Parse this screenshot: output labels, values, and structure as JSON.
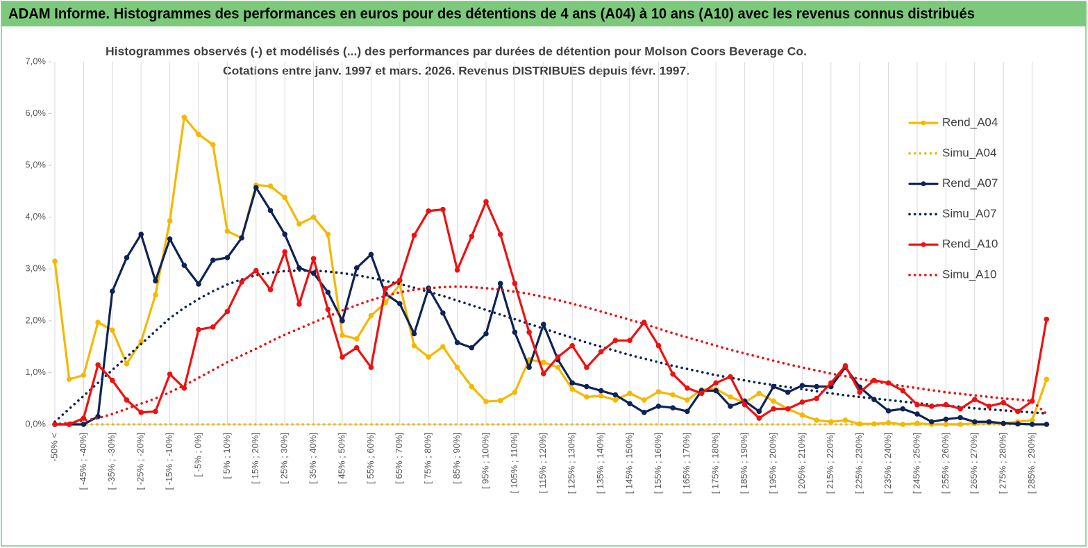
{
  "chart_data": {
    "type": "line",
    "title": "ADAM Informe. Histogrammes des performances en euros pour des détentions de 4 ans (A04) à 10 ans (A10) avec les revenus connus distribués",
    "subtitle": [
      "Histogrammes observés (-)  et modélisés (...) des performances par durées de détention pour Molson Coors Beverage Co.",
      "Cotations entre janv. 1997 et mars. 2026.  Revenus DISTRIBUES depuis févr. 1997."
    ],
    "categories": [
      "-50% <",
      null,
      "[ -45% ; -40%]",
      null,
      "[ -35% ; -30%]",
      null,
      "[ -25% ; -20%]",
      null,
      "[ -15% ; -10%]",
      null,
      "[ -5% ; 0%]",
      null,
      "[ 5% ; 10%]",
      null,
      "[ 15% ; 20%]",
      null,
      "[ 25% ; 30%]",
      null,
      "[ 35% ; 40%]",
      null,
      "[ 45% ; 50%]",
      null,
      "[ 55% ; 60%]",
      null,
      "[ 65% ; 70%]",
      null,
      "[ 75% ; 80%]",
      null,
      "[ 85% ; 90%]",
      null,
      "[ 95% ; 100%]",
      null,
      "[ 105% ; 110%]",
      null,
      "[ 115% ; 120%]",
      null,
      "[ 125% ; 130%]",
      null,
      "[ 135% ; 140%]",
      null,
      "[ 145% ; 150%]",
      null,
      "[ 155% ; 160%]",
      null,
      "[ 165% ; 170%]",
      null,
      "[ 175% ; 180%]",
      null,
      "[ 185% ; 190%]",
      null,
      "[ 195% ; 200%]",
      null,
      "[ 205% ; 210%]",
      null,
      "[ 215% ; 220%]",
      null,
      "[ 225% ; 230%]",
      null,
      "[ 235% ; 240%]",
      null,
      "[ 245% ; 250%]",
      null,
      "[ 255% ; 260%]",
      null,
      "[ 265% ; 270%]",
      null,
      "[ 275% ; 280%]",
      null,
      "[ 285% ; 290%]",
      null
    ],
    "series": [
      {
        "name": "Rend_A04",
        "color": "#f5b800",
        "style": "solid",
        "markers": true,
        "values": [
          3.15,
          0.87,
          0.95,
          1.97,
          1.82,
          1.17,
          1.6,
          2.5,
          3.93,
          5.93,
          5.6,
          5.4,
          3.73,
          3.6,
          4.62,
          4.6,
          4.38,
          3.87,
          4.0,
          3.67,
          1.72,
          1.65,
          2.1,
          2.35,
          2.7,
          1.52,
          1.3,
          1.5,
          1.1,
          0.73,
          0.44,
          0.46,
          0.62,
          1.25,
          1.2,
          1.1,
          0.68,
          0.53,
          0.55,
          0.47,
          0.6,
          0.47,
          0.63,
          0.57,
          0.47,
          0.67,
          0.68,
          0.53,
          0.42,
          0.6,
          0.45,
          0.3,
          0.18,
          0.08,
          0.05,
          0.08,
          0.01,
          0.01,
          0.03,
          0.0,
          0.02,
          0.0,
          0.0,
          0.0,
          0.02,
          0.03,
          0.02,
          0.05,
          0.08,
          0.87
        ]
      },
      {
        "name": "Simu_A04",
        "color": "#f5b800",
        "style": "dotted",
        "markers": false,
        "values": [
          0,
          0,
          0,
          0,
          0,
          0,
          0,
          0,
          0,
          0,
          0,
          0,
          0,
          0,
          0,
          0,
          0,
          0,
          0,
          0,
          0,
          0,
          0,
          0,
          0,
          0,
          0,
          0,
          0,
          0,
          0,
          0,
          0,
          0,
          0,
          0,
          0,
          0,
          0,
          0,
          0,
          0,
          0,
          0,
          0,
          0,
          0,
          0,
          0,
          0,
          0,
          0,
          0,
          0,
          0,
          0,
          0,
          0,
          0,
          0,
          0,
          0,
          0,
          0,
          0,
          0,
          0,
          0,
          0,
          0
        ]
      },
      {
        "name": "Rend_A07",
        "color": "#0e2356",
        "style": "solid",
        "markers": true,
        "values": [
          0,
          0,
          0,
          0.15,
          2.57,
          3.22,
          3.67,
          2.77,
          3.58,
          3.07,
          2.71,
          3.17,
          3.22,
          3.6,
          4.57,
          4.13,
          3.67,
          3.02,
          2.92,
          2.55,
          2.0,
          3.02,
          3.28,
          2.52,
          2.33,
          1.75,
          2.63,
          2.15,
          1.58,
          1.48,
          1.75,
          2.72,
          1.78,
          1.1,
          1.93,
          1.25,
          0.8,
          0.73,
          0.65,
          0.57,
          0.4,
          0.23,
          0.35,
          0.32,
          0.25,
          0.65,
          0.65,
          0.35,
          0.45,
          0.25,
          0.73,
          0.62,
          0.75,
          0.73,
          0.73,
          1.1,
          0.72,
          0.48,
          0.26,
          0.3,
          0.2,
          0.05,
          0.1,
          0.13,
          0.05,
          0.05,
          0.02,
          0.01,
          0.0,
          0.0
        ]
      },
      {
        "name": "Simu_A07",
        "color": "#0e2356",
        "style": "dotted",
        "markers": false,
        "values": [
          0.05,
          0.3,
          0.55,
          0.8,
          1.05,
          1.3,
          1.55,
          1.8,
          2.05,
          2.25,
          2.42,
          2.57,
          2.7,
          2.8,
          2.88,
          2.93,
          2.96,
          2.97,
          2.97,
          2.95,
          2.92,
          2.88,
          2.83,
          2.77,
          2.71,
          2.64,
          2.56,
          2.48,
          2.39,
          2.3,
          2.21,
          2.12,
          2.03,
          1.94,
          1.85,
          1.76,
          1.67,
          1.58,
          1.5,
          1.42,
          1.34,
          1.27,
          1.2,
          1.13,
          1.07,
          1.01,
          0.95,
          0.9,
          0.85,
          0.8,
          0.76,
          0.72,
          0.68,
          0.64,
          0.6,
          0.56,
          0.53,
          0.5,
          0.47,
          0.44,
          0.41,
          0.38,
          0.36,
          0.34,
          0.31,
          0.29,
          0.27,
          0.25,
          0.23,
          0.21
        ]
      },
      {
        "name": "Rend_A10",
        "color": "#ee1111",
        "style": "solid",
        "markers": true,
        "values": [
          0,
          0,
          0.12,
          1.15,
          0.85,
          0.47,
          0.23,
          0.25,
          0.97,
          0.7,
          1.83,
          1.88,
          2.18,
          2.75,
          2.97,
          2.6,
          3.33,
          2.32,
          3.2,
          2.22,
          1.3,
          1.48,
          1.1,
          2.62,
          2.78,
          3.65,
          4.12,
          4.15,
          2.98,
          3.63,
          4.3,
          3.67,
          2.72,
          1.78,
          0.98,
          1.3,
          1.52,
          1.1,
          1.4,
          1.62,
          1.62,
          1.97,
          1.52,
          0.97,
          0.7,
          0.6,
          0.8,
          0.92,
          0.38,
          0.12,
          0.3,
          0.3,
          0.43,
          0.5,
          0.8,
          1.13,
          0.62,
          0.85,
          0.8,
          0.65,
          0.38,
          0.35,
          0.38,
          0.3,
          0.48,
          0.35,
          0.42,
          0.25,
          0.45,
          2.03
        ]
      },
      {
        "name": "Simu_A10",
        "color": "#ee1111",
        "style": "dotted",
        "markers": false,
        "values": [
          0.0,
          0.03,
          0.07,
          0.12,
          0.2,
          0.3,
          0.4,
          0.5,
          0.62,
          0.75,
          0.9,
          1.05,
          1.2,
          1.33,
          1.46,
          1.6,
          1.73,
          1.85,
          1.97,
          2.08,
          2.2,
          2.3,
          2.4,
          2.48,
          2.55,
          2.6,
          2.63,
          2.65,
          2.66,
          2.65,
          2.63,
          2.6,
          2.56,
          2.52,
          2.46,
          2.4,
          2.33,
          2.26,
          2.18,
          2.1,
          2.02,
          1.94,
          1.85,
          1.76,
          1.68,
          1.6,
          1.52,
          1.44,
          1.37,
          1.3,
          1.23,
          1.16,
          1.1,
          1.04,
          0.98,
          0.93,
          0.88,
          0.83,
          0.78,
          0.74,
          0.7,
          0.66,
          0.62,
          0.59,
          0.56,
          0.53,
          0.5,
          0.48,
          0.45,
          0.2
        ]
      }
    ],
    "ylim": [
      0,
      7
    ],
    "yticks": [
      {
        "value": 0,
        "label": "0,0%"
      },
      {
        "value": 1,
        "label": "1,0%"
      },
      {
        "value": 2,
        "label": "2,0%"
      },
      {
        "value": 3,
        "label": "3,0%"
      },
      {
        "value": 4,
        "label": "4,0%"
      },
      {
        "value": 5,
        "label": "5,0%"
      },
      {
        "value": 6,
        "label": "6,0%"
      },
      {
        "value": 7,
        "label": "7,0%"
      }
    ],
    "grid": "x",
    "legend": "right"
  }
}
